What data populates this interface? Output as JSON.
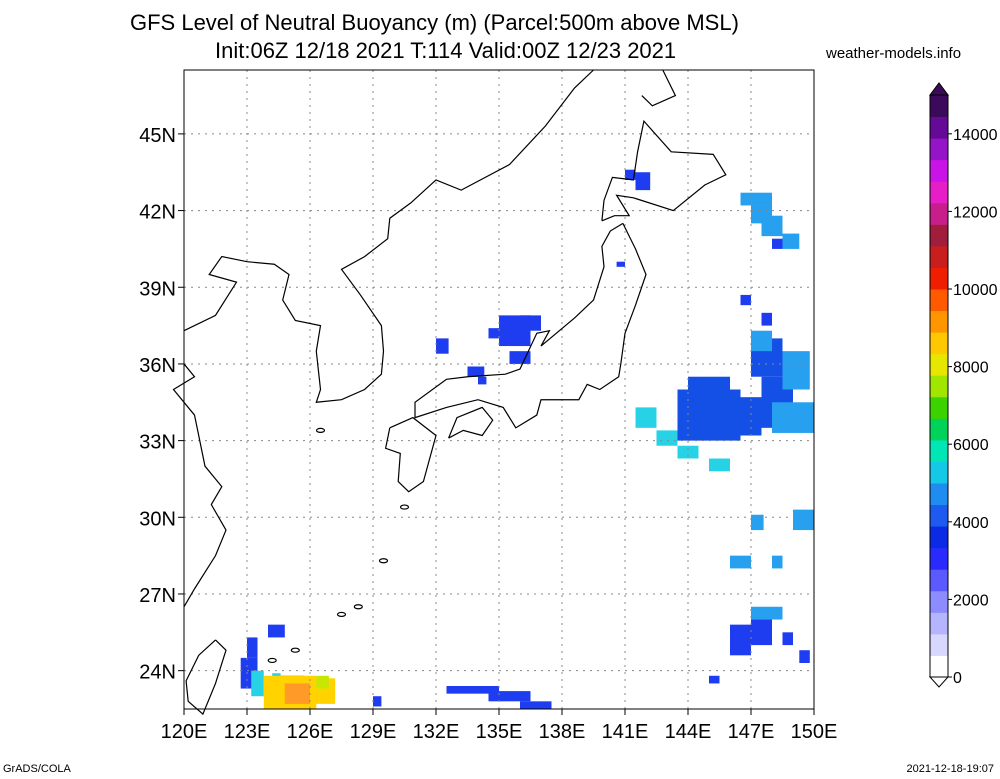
{
  "title_line1": "GFS Level of Neutral Buoyancy (m) (Parcel:500m above MSL)",
  "title_line2": "Init:06Z 12/18 2021 T:114 Valid:00Z 12/23 2021",
  "site": "weather-models.info",
  "footer_left": "GrADS/COLA",
  "footer_right": "2021-12-18-19:07",
  "map": {
    "lon_range": [
      120,
      150
    ],
    "lat_range": [
      22.5,
      47.5
    ],
    "lon_ticks": [
      "120E",
      "123E",
      "126E",
      "129E",
      "132E",
      "135E",
      "138E",
      "141E",
      "144E",
      "147E",
      "150E"
    ],
    "lat_ticks": [
      "24N",
      "27N",
      "30N",
      "33N",
      "36N",
      "39N",
      "42N",
      "45N"
    ],
    "grid": true
  },
  "colorbar": {
    "ticks": [
      "0",
      "2000",
      "4000",
      "6000",
      "8000",
      "10000",
      "12000",
      "14000"
    ],
    "colors": [
      "#ffffff",
      "#d8d8ff",
      "#b4b4ff",
      "#8c8cff",
      "#5a5aff",
      "#2a2aff",
      "#0a2ae6",
      "#1e5af0",
      "#1e8cf0",
      "#14c8e6",
      "#00e6b4",
      "#00d25a",
      "#3cd200",
      "#a0e600",
      "#e6e600",
      "#ffc800",
      "#ff9600",
      "#ff5a00",
      "#f01e00",
      "#c81e1e",
      "#a01e3c",
      "#c81e8c",
      "#e61ec8",
      "#c814e6",
      "#9614c8",
      "#640a96",
      "#3c0a5a"
    ]
  }
}
